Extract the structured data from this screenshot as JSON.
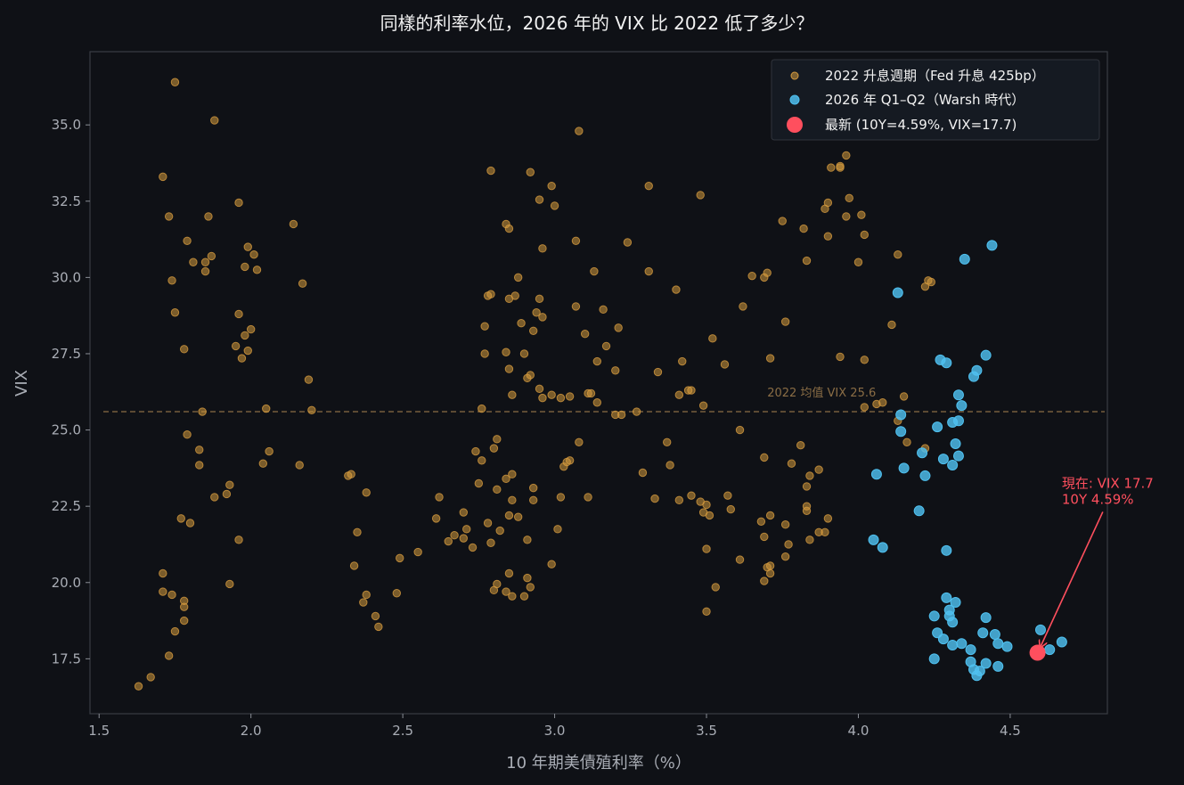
{
  "colors": {
    "background": "#0f1116",
    "axes_border": "#3a3d44",
    "series_2022": "#d49a3e",
    "series_2026": "#4fc0ef",
    "latest": "#ff4f5e",
    "mean_line": "#8a6d45"
  },
  "chart_data": {
    "type": "scatter",
    "title": "同樣的利率水位，2026 年的 VIX 比 2022 低了多少？",
    "xlabel": "10 年期美債殖利率（%）",
    "ylabel": "VIX",
    "xlim": [
      1.47,
      4.82
    ],
    "ylim": [
      15.7,
      37.4
    ],
    "x_ticks": [
      1.5,
      2.0,
      2.5,
      3.0,
      3.5,
      4.0,
      4.5
    ],
    "x_tick_labels": [
      "1.5",
      "2.0",
      "2.5",
      "3.0",
      "3.5",
      "4.0",
      "4.5"
    ],
    "y_ticks": [
      17.5,
      20.0,
      22.5,
      25.0,
      27.5,
      30.0,
      32.5,
      35.0
    ],
    "y_tick_labels": [
      "17.5",
      "20.0",
      "22.5",
      "25.0",
      "27.5",
      "30.0",
      "32.5",
      "35.0"
    ],
    "grid": false,
    "legend_position": "top-right",
    "reference_line": {
      "y": 25.6,
      "label": "2022 均值 VIX 25.6"
    },
    "annotation": {
      "line1": "現在: VIX 17.7",
      "line2": "10Y 4.59%",
      "text_at": [
        4.67,
        22.9
      ],
      "points_to": [
        4.59,
        17.7
      ]
    },
    "series": [
      {
        "name": "2022 升息週期（Fed 升息 425bp）",
        "marker": "circle-small",
        "points": [
          [
            1.63,
            16.6
          ],
          [
            1.67,
            16.9
          ],
          [
            1.71,
            33.3
          ],
          [
            1.73,
            32.0
          ],
          [
            1.74,
            29.9
          ],
          [
            1.75,
            36.4
          ],
          [
            1.75,
            28.85
          ],
          [
            1.79,
            31.2
          ],
          [
            1.81,
            30.5
          ],
          [
            1.85,
            30.2
          ],
          [
            1.85,
            30.5
          ],
          [
            1.86,
            32.0
          ],
          [
            1.88,
            35.15
          ],
          [
            1.87,
            30.7
          ],
          [
            1.78,
            27.65
          ],
          [
            1.71,
            20.3
          ],
          [
            1.71,
            19.7
          ],
          [
            1.74,
            19.6
          ],
          [
            1.78,
            19.2
          ],
          [
            1.78,
            19.4
          ],
          [
            1.78,
            18.75
          ],
          [
            1.75,
            18.4
          ],
          [
            1.73,
            17.6
          ],
          [
            1.77,
            22.1
          ],
          [
            1.8,
            21.95
          ],
          [
            1.79,
            24.85
          ],
          [
            1.83,
            24.35
          ],
          [
            1.83,
            23.85
          ],
          [
            1.84,
            25.6
          ],
          [
            1.88,
            22.8
          ],
          [
            1.92,
            22.9
          ],
          [
            1.93,
            23.2
          ],
          [
            1.93,
            19.95
          ],
          [
            1.96,
            21.4
          ],
          [
            1.96,
            32.45
          ],
          [
            1.98,
            30.35
          ],
          [
            1.99,
            31.0
          ],
          [
            2.01,
            30.75
          ],
          [
            2.02,
            30.25
          ],
          [
            1.96,
            28.8
          ],
          [
            1.98,
            28.1
          ],
          [
            2.0,
            28.3
          ],
          [
            1.95,
            27.75
          ],
          [
            1.97,
            27.35
          ],
          [
            1.99,
            27.6
          ],
          [
            2.05,
            25.7
          ],
          [
            2.06,
            24.3
          ],
          [
            2.04,
            23.9
          ],
          [
            2.14,
            31.75
          ],
          [
            2.17,
            29.8
          ],
          [
            2.19,
            26.65
          ],
          [
            2.2,
            25.65
          ],
          [
            2.16,
            23.85
          ],
          [
            2.32,
            23.5
          ],
          [
            2.33,
            23.55
          ],
          [
            2.34,
            20.55
          ],
          [
            2.35,
            21.65
          ],
          [
            2.38,
            22.95
          ],
          [
            2.37,
            19.35
          ],
          [
            2.38,
            19.6
          ],
          [
            2.41,
            18.9
          ],
          [
            2.42,
            18.55
          ],
          [
            2.49,
            20.8
          ],
          [
            2.48,
            19.65
          ],
          [
            2.55,
            21.0
          ],
          [
            2.62,
            22.8
          ],
          [
            2.61,
            22.1
          ],
          [
            2.65,
            21.35
          ],
          [
            2.67,
            21.55
          ],
          [
            2.7,
            21.45
          ],
          [
            2.7,
            22.3
          ],
          [
            2.71,
            21.75
          ],
          [
            2.73,
            21.15
          ],
          [
            2.74,
            24.3
          ],
          [
            2.75,
            23.25
          ],
          [
            2.76,
            24.0
          ],
          [
            2.76,
            25.7
          ],
          [
            2.77,
            27.5
          ],
          [
            2.77,
            28.4
          ],
          [
            2.78,
            29.4
          ],
          [
            2.79,
            29.45
          ],
          [
            2.8,
            24.4
          ],
          [
            2.81,
            24.7
          ],
          [
            2.81,
            23.05
          ],
          [
            2.82,
            21.7
          ],
          [
            2.78,
            21.95
          ],
          [
            2.79,
            21.3
          ],
          [
            2.81,
            19.95
          ],
          [
            2.8,
            19.75
          ],
          [
            2.84,
            19.7
          ],
          [
            2.85,
            20.3
          ],
          [
            2.86,
            19.55
          ],
          [
            2.9,
            19.55
          ],
          [
            2.92,
            19.85
          ],
          [
            2.91,
            20.15
          ],
          [
            2.85,
            22.2
          ],
          [
            2.86,
            22.7
          ],
          [
            2.88,
            22.15
          ],
          [
            2.91,
            21.4
          ],
          [
            2.93,
            23.1
          ],
          [
            2.93,
            22.7
          ],
          [
            2.86,
            23.55
          ],
          [
            2.84,
            23.4
          ],
          [
            2.79,
            33.5
          ],
          [
            2.84,
            31.75
          ],
          [
            2.85,
            31.6
          ],
          [
            2.87,
            29.4
          ],
          [
            2.88,
            30.0
          ],
          [
            2.89,
            28.5
          ],
          [
            2.93,
            28.25
          ],
          [
            2.94,
            28.85
          ],
          [
            2.95,
            29.3
          ],
          [
            2.96,
            28.7
          ],
          [
            2.84,
            27.55
          ],
          [
            2.9,
            27.5
          ],
          [
            2.85,
            27.0
          ],
          [
            2.86,
            26.15
          ],
          [
            2.91,
            26.7
          ],
          [
            2.92,
            26.8
          ],
          [
            2.95,
            26.35
          ],
          [
            2.96,
            26.05
          ],
          [
            2.99,
            26.15
          ],
          [
            3.02,
            26.05
          ],
          [
            3.05,
            26.1
          ],
          [
            2.92,
            33.45
          ],
          [
            2.95,
            32.55
          ],
          [
            2.99,
            33.0
          ],
          [
            3.0,
            32.35
          ],
          [
            2.96,
            30.95
          ],
          [
            3.08,
            34.8
          ],
          [
            3.07,
            31.2
          ],
          [
            3.13,
            30.2
          ],
          [
            3.07,
            29.05
          ],
          [
            3.1,
            28.15
          ],
          [
            3.14,
            27.25
          ],
          [
            3.16,
            28.95
          ],
          [
            3.17,
            27.75
          ],
          [
            3.2,
            26.95
          ],
          [
            3.21,
            28.35
          ],
          [
            3.11,
            26.2
          ],
          [
            3.12,
            26.2
          ],
          [
            3.14,
            25.9
          ],
          [
            3.2,
            25.5
          ],
          [
            3.27,
            25.6
          ],
          [
            3.08,
            24.6
          ],
          [
            3.05,
            24.0
          ],
          [
            3.04,
            23.95
          ],
          [
            3.03,
            23.8
          ],
          [
            3.02,
            22.8
          ],
          [
            3.01,
            21.75
          ],
          [
            2.99,
            20.6
          ],
          [
            3.11,
            22.8
          ],
          [
            3.24,
            31.15
          ],
          [
            3.31,
            33.0
          ],
          [
            3.31,
            30.2
          ],
          [
            3.37,
            24.6
          ],
          [
            3.34,
            26.9
          ],
          [
            3.29,
            23.6
          ],
          [
            3.33,
            22.75
          ],
          [
            3.38,
            23.85
          ],
          [
            3.4,
            29.6
          ],
          [
            3.41,
            26.15
          ],
          [
            3.42,
            27.25
          ],
          [
            3.44,
            26.3
          ],
          [
            3.45,
            26.3
          ],
          [
            3.41,
            22.7
          ],
          [
            3.45,
            22.85
          ],
          [
            3.48,
            22.65
          ],
          [
            3.49,
            22.3
          ],
          [
            3.5,
            22.55
          ],
          [
            3.51,
            22.2
          ],
          [
            3.5,
            21.1
          ],
          [
            3.53,
            19.85
          ],
          [
            3.5,
            19.05
          ],
          [
            3.48,
            32.7
          ],
          [
            3.52,
            28.0
          ],
          [
            3.56,
            27.15
          ],
          [
            3.49,
            25.8
          ],
          [
            3.57,
            22.85
          ],
          [
            3.58,
            22.4
          ],
          [
            3.61,
            20.75
          ],
          [
            3.62,
            29.05
          ],
          [
            3.65,
            30.05
          ],
          [
            3.69,
            30.0
          ],
          [
            3.7,
            30.15
          ],
          [
            3.71,
            27.35
          ],
          [
            3.61,
            25.0
          ],
          [
            3.69,
            24.1
          ],
          [
            3.68,
            22.0
          ],
          [
            3.71,
            22.2
          ],
          [
            3.69,
            21.5
          ],
          [
            3.7,
            20.5
          ],
          [
            3.71,
            20.55
          ],
          [
            3.69,
            20.05
          ],
          [
            3.71,
            20.3
          ],
          [
            3.76,
            20.85
          ],
          [
            3.77,
            21.25
          ],
          [
            3.76,
            21.9
          ],
          [
            3.75,
            31.85
          ],
          [
            3.76,
            28.55
          ],
          [
            3.82,
            31.6
          ],
          [
            3.83,
            30.55
          ],
          [
            3.78,
            23.9
          ],
          [
            3.81,
            24.5
          ],
          [
            3.83,
            23.15
          ],
          [
            3.84,
            23.5
          ],
          [
            3.83,
            22.5
          ],
          [
            3.83,
            22.35
          ],
          [
            3.84,
            21.4
          ],
          [
            3.87,
            21.65
          ],
          [
            3.87,
            23.7
          ],
          [
            3.89,
            21.65
          ],
          [
            3.9,
            22.1
          ],
          [
            3.89,
            32.25
          ],
          [
            3.9,
            32.45
          ],
          [
            3.9,
            31.35
          ],
          [
            3.91,
            33.6
          ],
          [
            3.94,
            33.65
          ],
          [
            3.96,
            32.0
          ],
          [
            3.97,
            32.6
          ],
          [
            3.94,
            27.4
          ],
          [
            4.01,
            32.05
          ],
          [
            4.0,
            30.5
          ],
          [
            4.02,
            31.4
          ],
          [
            4.02,
            27.3
          ],
          [
            4.02,
            25.75
          ],
          [
            4.06,
            25.85
          ],
          [
            4.08,
            25.9
          ],
          [
            4.11,
            28.45
          ],
          [
            4.13,
            30.75
          ],
          [
            4.13,
            25.3
          ],
          [
            4.15,
            26.1
          ],
          [
            4.16,
            24.6
          ],
          [
            4.22,
            29.7
          ],
          [
            4.23,
            29.9
          ],
          [
            4.24,
            29.85
          ],
          [
            4.22,
            24.4
          ],
          [
            3.74,
            35.1
          ],
          [
            3.94,
            33.6
          ],
          [
            2.85,
            29.3
          ],
          [
            3.22,
            25.5
          ],
          [
            3.96,
            34.0
          ]
        ]
      },
      {
        "name": "2026 年 Q1–Q2（Warsh 時代）",
        "marker": "circle",
        "points": [
          [
            4.13,
            29.5
          ],
          [
            4.35,
            30.6
          ],
          [
            4.44,
            31.05
          ],
          [
            4.27,
            27.3
          ],
          [
            4.29,
            27.2
          ],
          [
            4.38,
            26.75
          ],
          [
            4.39,
            26.95
          ],
          [
            4.42,
            27.45
          ],
          [
            4.33,
            26.15
          ],
          [
            4.34,
            25.8
          ],
          [
            4.31,
            25.25
          ],
          [
            4.33,
            25.3
          ],
          [
            4.26,
            25.1
          ],
          [
            4.14,
            25.5
          ],
          [
            4.14,
            24.95
          ],
          [
            4.32,
            24.55
          ],
          [
            4.33,
            24.15
          ],
          [
            4.28,
            24.05
          ],
          [
            4.31,
            23.85
          ],
          [
            4.21,
            24.25
          ],
          [
            4.22,
            23.5
          ],
          [
            4.15,
            23.75
          ],
          [
            4.06,
            23.55
          ],
          [
            4.2,
            22.35
          ],
          [
            4.05,
            21.4
          ],
          [
            4.08,
            21.15
          ],
          [
            4.29,
            21.05
          ],
          [
            4.29,
            19.5
          ],
          [
            4.32,
            19.35
          ],
          [
            4.3,
            19.1
          ],
          [
            4.3,
            18.9
          ],
          [
            4.25,
            18.9
          ],
          [
            4.31,
            18.7
          ],
          [
            4.42,
            18.85
          ],
          [
            4.26,
            18.35
          ],
          [
            4.28,
            18.15
          ],
          [
            4.31,
            17.95
          ],
          [
            4.34,
            18.0
          ],
          [
            4.37,
            17.8
          ],
          [
            4.41,
            18.35
          ],
          [
            4.45,
            18.3
          ],
          [
            4.46,
            18.0
          ],
          [
            4.49,
            17.9
          ],
          [
            4.25,
            17.5
          ],
          [
            4.37,
            17.4
          ],
          [
            4.38,
            17.15
          ],
          [
            4.4,
            17.1
          ],
          [
            4.39,
            16.95
          ],
          [
            4.42,
            17.35
          ],
          [
            4.46,
            17.25
          ],
          [
            4.6,
            18.45
          ],
          [
            4.63,
            17.8
          ],
          [
            4.67,
            18.05
          ]
        ]
      },
      {
        "name": "最新 (10Y=4.59%, VIX=17.7)",
        "marker": "circle-large",
        "points": [
          [
            4.59,
            17.7
          ]
        ]
      }
    ]
  }
}
